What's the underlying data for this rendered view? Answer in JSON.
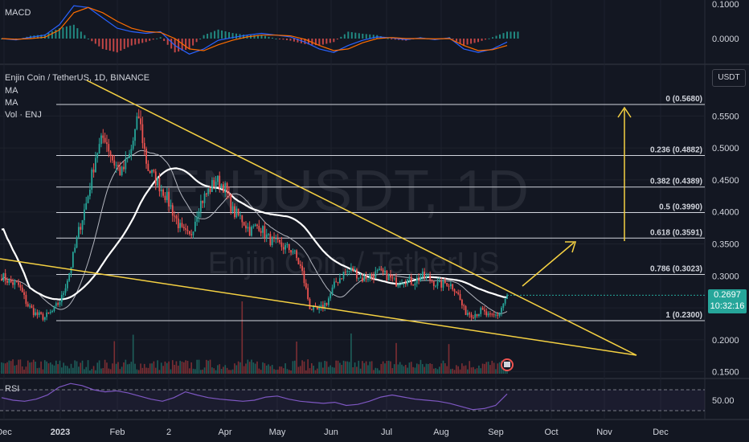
{
  "header": {
    "symbol_line": "Enjin Coin / TetherUS, 1D, BINANCE",
    "indicator_ma1": "MA",
    "indicator_ma2": "MA",
    "indicator_vol": "Vol · ENJ",
    "currency_button": "USDT",
    "current_price": "0.2697",
    "countdown": "10:32:16"
  },
  "watermark": {
    "line1": "ENJUSDT, 1D",
    "line2": "Enjin Coin / TetherUS"
  },
  "colors": {
    "up": "#26a69a",
    "down": "#ef5350",
    "trendline": "#f5d142",
    "ma_thick": "#ffffff",
    "fib": "#d1d4dc",
    "background": "#131722",
    "rsi": "#7e57c2",
    "macd": "#2962ff",
    "signal": "#ff6d00"
  },
  "chart_data": [
    {
      "type": "line",
      "title": "MACD",
      "y_ticks": [
        "0.1000",
        "0.0000"
      ],
      "ylim": [
        -0.12,
        0.12
      ],
      "series": [
        {
          "values": [
            0.0,
            -0.004,
            0.004,
            0.01,
            0.04,
            0.095,
            0.09,
            0.06,
            0.03,
            0.02,
            0.015,
            0.02,
            -0.02,
            -0.045,
            -0.03,
            -0.005,
            0.003,
            0.01,
            0.015,
            0.01,
            0.005,
            -0.01,
            -0.03,
            -0.04,
            -0.02,
            -0.005,
            0.005,
            0.002,
            -0.003,
            0.002,
            -0.003,
            0.002,
            -0.03,
            -0.04,
            -0.03,
            -0.01
          ]
        },
        {
          "values": [
            0.0,
            -0.002,
            0.0,
            0.004,
            0.025,
            0.075,
            0.09,
            0.075,
            0.05,
            0.03,
            0.02,
            0.018,
            0.0,
            -0.03,
            -0.035,
            -0.018,
            -0.005,
            0.005,
            0.01,
            0.01,
            0.008,
            -0.002,
            -0.02,
            -0.035,
            -0.03,
            -0.012,
            0.0,
            0.003,
            0.0,
            0.0,
            -0.001,
            0.0,
            -0.02,
            -0.035,
            -0.032,
            -0.02
          ]
        }
      ]
    },
    {
      "type": "candlestick",
      "title": "Enjin Coin / TetherUS, 1D, BINANCE",
      "ylim": [
        0.145,
        0.59
      ],
      "y_ticks": [
        "0.5500",
        "0.5000",
        "0.4500",
        "0.4000",
        "0.3500",
        "0.3000",
        "0.2500",
        "0.2000",
        "0.1500"
      ],
      "x_ticks": [
        "Dec",
        "2023",
        "Feb",
        "2",
        "Apr",
        "May",
        "Jun",
        "Jul",
        "Aug",
        "Sep",
        "Oct",
        "Nov",
        "Dec"
      ],
      "close_path": [
        0.3,
        0.29,
        0.285,
        0.255,
        0.24,
        0.235,
        0.245,
        0.265,
        0.31,
        0.37,
        0.42,
        0.49,
        0.52,
        0.48,
        0.46,
        0.49,
        0.55,
        0.47,
        0.45,
        0.43,
        0.4,
        0.37,
        0.36,
        0.41,
        0.43,
        0.45,
        0.44,
        0.4,
        0.39,
        0.37,
        0.38,
        0.36,
        0.35,
        0.345,
        0.34,
        0.31,
        0.25,
        0.245,
        0.26,
        0.29,
        0.305,
        0.31,
        0.295,
        0.3,
        0.305,
        0.3,
        0.29,
        0.295,
        0.29,
        0.3,
        0.295,
        0.285,
        0.29,
        0.28,
        0.245,
        0.24,
        0.245,
        0.235,
        0.24,
        0.2697
      ],
      "fib_levels": [
        {
          "label": "0 (0.5680)",
          "value": 0.568
        },
        {
          "label": "0.236 (0.4882)",
          "value": 0.4882
        },
        {
          "label": "0.382 (0.4389)",
          "value": 0.4389
        },
        {
          "label": "0.5 (0.3990)",
          "value": 0.399
        },
        {
          "label": "0.618 (0.3591)",
          "value": 0.3591
        },
        {
          "label": "0.786 (0.3023)",
          "value": 0.3023
        },
        {
          "label": "1 (0.2300)",
          "value": 0.23
        }
      ],
      "last_price": 0.2697
    },
    {
      "type": "line",
      "title": "RSI",
      "y_ticks": [
        "50.00"
      ],
      "ylim": [
        0,
        100
      ],
      "bands": [
        30,
        70
      ],
      "values": [
        55,
        50,
        48,
        52,
        60,
        75,
        82,
        78,
        70,
        66,
        68,
        64,
        58,
        52,
        48,
        55,
        66,
        60,
        55,
        52,
        50,
        48,
        50,
        56,
        58,
        52,
        48,
        46,
        44,
        46,
        40,
        42,
        48,
        56,
        60,
        56,
        52,
        50,
        48,
        44,
        38,
        32,
        34,
        40,
        62
      ]
    }
  ]
}
